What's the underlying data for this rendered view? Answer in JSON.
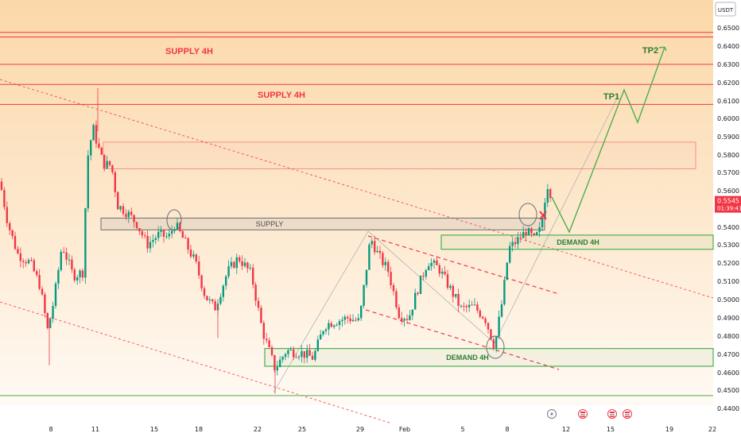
{
  "chart_data": {
    "type": "candlestick",
    "currency_label": "USDT",
    "price_badge": {
      "value": "0.5545",
      "countdown": "01:39:41"
    },
    "y_ticks": [
      "0.6500",
      "0.6400",
      "0.6300",
      "0.6200",
      "0.6100",
      "0.6000",
      "0.5900",
      "0.5800",
      "0.5700",
      "0.5600",
      "0.5400",
      "0.5300",
      "0.5200",
      "0.5100",
      "0.5000",
      "0.4900",
      "0.4800",
      "0.4700",
      "0.4600",
      "0.4500",
      "0.4400"
    ],
    "x_ticks": [
      "8",
      "11",
      "15",
      "18",
      "22",
      "25",
      "29",
      "Feb",
      "5",
      "8",
      "12",
      "15",
      "19",
      "22"
    ],
    "zones": [
      {
        "label": "SUPPLY 4H",
        "kind": "supply",
        "top": 0.645,
        "bottom": 0.63
      },
      {
        "label": "SUPPLY 4H",
        "kind": "supply",
        "top": 0.619,
        "bottom": 0.608
      },
      {
        "label": "",
        "kind": "supply-box",
        "top": 0.587,
        "bottom": 0.572
      },
      {
        "label": "SUPPLY",
        "kind": "supply-gray",
        "top": 0.545,
        "bottom": 0.5385
      },
      {
        "label": "DEMAND 4H",
        "kind": "demand",
        "top": 0.5355,
        "bottom": 0.5275
      },
      {
        "label": "DEMAND 4H",
        "kind": "demand",
        "top": 0.4732,
        "bottom": 0.4635
      }
    ],
    "levels": {
      "top_lines": [
        0.6475,
        0.645,
        0.63,
        0.619,
        0.608
      ],
      "bottom_line": 0.447
    },
    "targets": [
      {
        "label": "TP1",
        "price": 0.613
      },
      {
        "label": "TP2",
        "price": 0.642
      }
    ],
    "colors": {
      "up": "#089981",
      "down": "#f23645",
      "supply": "#f23645",
      "demand": "#4caf50",
      "projection": "#4caf50",
      "bg_top": "#fbd8a8",
      "bg_bottom": "#fffaf2",
      "badge": "#f23645"
    }
  }
}
